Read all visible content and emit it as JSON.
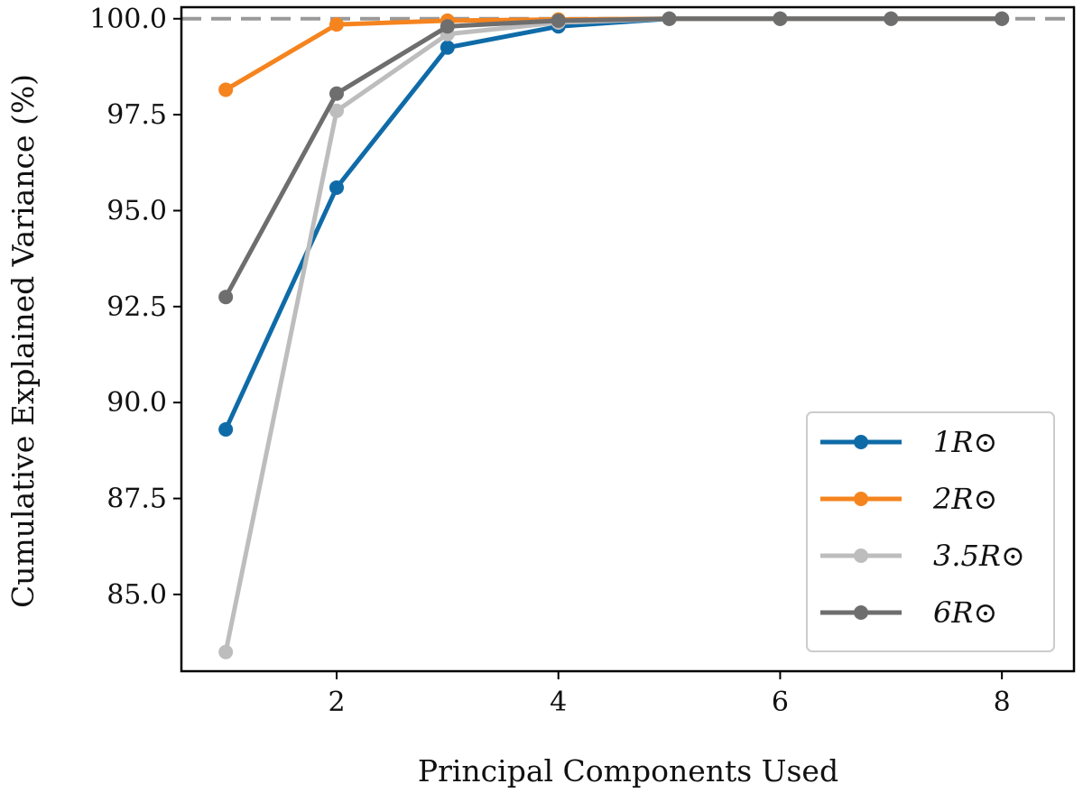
{
  "chart_data": {
    "type": "line",
    "xlabel": "Principal Components Used",
    "ylabel": "Cumulative Explained Variance (%)",
    "xlim": [
      0.6,
      8.65
    ],
    "ylim": [
      83.0,
      100.3
    ],
    "xticks": [
      "2",
      "4",
      "6",
      "8"
    ],
    "xtick_values": [
      2,
      4,
      6,
      8
    ],
    "yticks": [
      "85.0",
      "87.5",
      "90.0",
      "92.5",
      "95.0",
      "97.5",
      "100.0"
    ],
    "ytick_values": [
      85.0,
      87.5,
      90.0,
      92.5,
      95.0,
      97.5,
      100.0
    ],
    "reference_line": {
      "y": 100.0,
      "style": "dashed",
      "color": "#999999"
    },
    "grid": false,
    "legend_position": "lower right",
    "x": [
      1,
      2,
      3,
      4,
      5,
      6,
      7,
      8
    ],
    "series": [
      {
        "name": "1R⊙",
        "color": "#0f6ba8",
        "values": [
          89.3,
          95.6,
          99.25,
          99.8,
          100.0,
          100.0,
          100.0,
          100.0
        ]
      },
      {
        "name": "2R⊙",
        "color": "#f5841f",
        "values": [
          98.15,
          99.85,
          99.95,
          99.98,
          100.0,
          100.0,
          100.0,
          100.0
        ]
      },
      {
        "name": "3.5R⊙",
        "color": "#bdbdbd",
        "values": [
          83.5,
          97.6,
          99.6,
          99.9,
          100.0,
          100.0,
          100.0,
          100.0
        ]
      },
      {
        "name": "6R⊙",
        "color": "#6e6e6e",
        "values": [
          92.75,
          98.05,
          99.8,
          99.95,
          100.0,
          100.0,
          100.0,
          100.0
        ]
      }
    ]
  }
}
